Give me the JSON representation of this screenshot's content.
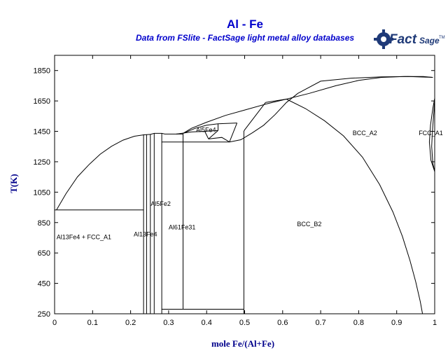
{
  "chart_data": {
    "type": "line",
    "title": "Al - Fe",
    "subtitle": "Data from FSlite - FactSage light metal alloy databases",
    "logo_text": "FactSage",
    "xlabel": "mole Fe/(Al+Fe)",
    "ylabel": "T(K)",
    "xlim": [
      0,
      1
    ],
    "ylim": [
      250,
      1950
    ],
    "x_ticks": [
      0,
      0.1,
      0.2,
      0.3,
      0.4,
      0.5,
      0.6,
      0.7,
      0.8,
      0.9,
      1
    ],
    "x_tick_labels": [
      "0",
      "0.1",
      "0.2",
      "0.3",
      "0.4",
      "0.5",
      "0.6",
      "0.7",
      "0.8",
      "0.9",
      "1"
    ],
    "y_ticks": [
      250,
      450,
      650,
      850,
      1050,
      1250,
      1450,
      1650,
      1850
    ],
    "y_tick_labels": [
      "250",
      "450",
      "650",
      "850",
      "1050",
      "1250",
      "1450",
      "1650",
      "1850"
    ],
    "grid": false,
    "region_labels": [
      {
        "text": "Al13Fe4 + FCC_A1",
        "x": 0.005,
        "y": 740
      },
      {
        "text": "Al13Fe4",
        "x": 0.208,
        "y": 760
      },
      {
        "text": "Al5Fe2",
        "x": 0.253,
        "y": 960
      },
      {
        "text": "Al61Fe31",
        "x": 0.3,
        "y": 805
      },
      {
        "text": "Al5Fe4",
        "x": 0.372,
        "y": 1445
      },
      {
        "text": "BCC_B2",
        "x": 0.638,
        "y": 825
      },
      {
        "text": "BCC_A2",
        "x": 0.784,
        "y": 1425
      },
      {
        "text": "FCC_A1",
        "x": 0.958,
        "y": 1425
      }
    ],
    "series": [
      {
        "points": [
          [
            0.005,
            933
          ],
          [
            0.03,
            1040
          ],
          [
            0.06,
            1150
          ],
          [
            0.09,
            1230
          ],
          [
            0.12,
            1300
          ],
          [
            0.15,
            1352
          ],
          [
            0.18,
            1392
          ],
          [
            0.21,
            1418
          ],
          [
            0.235,
            1427
          ],
          [
            0.252,
            1430
          ]
        ]
      },
      {
        "points": [
          [
            0,
            933
          ],
          [
            0.234,
            933
          ]
        ]
      },
      {
        "points": [
          [
            0.234,
            250
          ],
          [
            0.234,
            1430
          ]
        ]
      },
      {
        "points": [
          [
            0.242,
            250
          ],
          [
            0.242,
            1430
          ]
        ]
      },
      {
        "points": [
          [
            0.252,
            250
          ],
          [
            0.252,
            1430
          ]
        ]
      },
      {
        "points": [
          [
            0.262,
            250
          ],
          [
            0.262,
            1437
          ]
        ]
      },
      {
        "points": [
          [
            0.252,
            1430
          ],
          [
            0.262,
            1437
          ],
          [
            0.282,
            1437
          ],
          [
            0.29,
            1432
          ],
          [
            0.338,
            1432
          ]
        ]
      },
      {
        "points": [
          [
            0.282,
            250
          ],
          [
            0.282,
            1437
          ]
        ]
      },
      {
        "points": [
          [
            0.282,
            280
          ],
          [
            0.498,
            280
          ]
        ]
      },
      {
        "points": [
          [
            0.282,
            1380
          ],
          [
            0.338,
            1380
          ]
        ]
      },
      {
        "points": [
          [
            0.338,
            280
          ],
          [
            0.338,
            1437
          ]
        ]
      },
      {
        "points": [
          [
            0.338,
            1437
          ],
          [
            0.37,
            1470
          ],
          [
            0.4,
            1490
          ],
          [
            0.43,
            1500
          ],
          [
            0.48,
            1505
          ]
        ]
      },
      {
        "points": [
          [
            0.32,
            1432
          ],
          [
            0.36,
            1446
          ],
          [
            0.395,
            1450
          ],
          [
            0.43,
            1455
          ]
        ]
      },
      {
        "points": [
          [
            0.395,
            1450
          ],
          [
            0.405,
            1400
          ]
        ]
      },
      {
        "points": [
          [
            0.405,
            1400
          ],
          [
            0.43,
            1455
          ]
        ]
      },
      {
        "points": [
          [
            0.43,
            1455
          ],
          [
            0.43,
            1500
          ]
        ]
      },
      {
        "points": [
          [
            0.405,
            1400
          ],
          [
            0.44,
            1410
          ],
          [
            0.46,
            1380
          ]
        ]
      },
      {
        "points": [
          [
            0.338,
            1380
          ],
          [
            0.46,
            1380
          ]
        ]
      },
      {
        "points": [
          [
            0.46,
            1380
          ],
          [
            0.48,
            1505
          ]
        ]
      },
      {
        "points": [
          [
            0.338,
            1437
          ],
          [
            0.36,
            1470
          ],
          [
            0.4,
            1510
          ],
          [
            0.45,
            1555
          ],
          [
            0.5,
            1590
          ],
          [
            0.56,
            1632
          ],
          [
            0.61,
            1662
          ],
          [
            0.67,
            1700
          ],
          [
            0.74,
            1750
          ],
          [
            0.8,
            1785
          ],
          [
            0.86,
            1805
          ],
          [
            0.92,
            1811
          ],
          [
            0.97,
            1811
          ],
          [
            0.995,
            1805
          ]
        ]
      },
      {
        "points": [
          [
            0.46,
            1380
          ],
          [
            0.49,
            1395
          ],
          [
            0.52,
            1440
          ],
          [
            0.55,
            1490
          ],
          [
            0.58,
            1560
          ],
          [
            0.61,
            1640
          ],
          [
            0.64,
            1700
          ],
          [
            0.7,
            1780
          ],
          [
            0.78,
            1800
          ],
          [
            0.86,
            1808
          ],
          [
            0.93,
            1811
          ],
          [
            0.995,
            1805
          ]
        ]
      },
      {
        "points": [
          [
            0.555,
            1640
          ],
          [
            0.61,
            1662
          ]
        ]
      },
      {
        "points": [
          [
            0.61,
            1662
          ],
          [
            0.66,
            1600
          ],
          [
            0.71,
            1520
          ],
          [
            0.76,
            1420
          ],
          [
            0.81,
            1280
          ],
          [
            0.855,
            1100
          ],
          [
            0.89,
            920
          ],
          [
            0.915,
            760
          ],
          [
            0.935,
            600
          ],
          [
            0.95,
            460
          ],
          [
            0.962,
            330
          ],
          [
            0.968,
            250
          ]
        ]
      },
      {
        "points": [
          [
            0.498,
            250
          ],
          [
            0.498,
            1450
          ],
          [
            0.5,
            1460
          ],
          [
            0.555,
            1640
          ]
        ]
      },
      {
        "points": [
          [
            1.0,
            1185
          ],
          [
            0.995,
            1240
          ],
          [
            0.992,
            1350
          ],
          [
            0.994,
            1450
          ],
          [
            0.998,
            1580
          ],
          [
            1.0,
            1667
          ]
        ]
      },
      {
        "points": [
          [
            1.0,
            1185
          ],
          [
            0.99,
            1260
          ],
          [
            0.986,
            1380
          ],
          [
            0.989,
            1490
          ],
          [
            0.995,
            1600
          ],
          [
            1.0,
            1667
          ]
        ]
      }
    ]
  }
}
